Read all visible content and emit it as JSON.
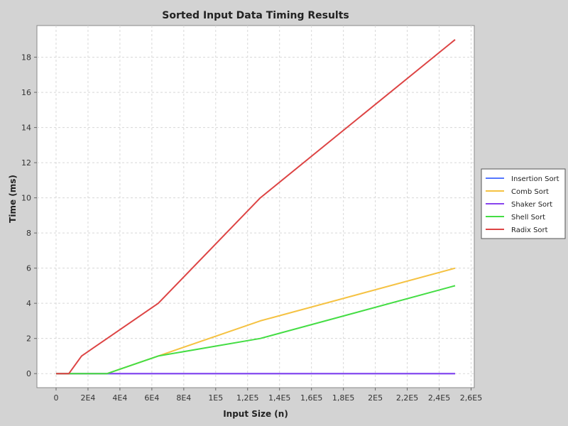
{
  "chart_data": {
    "type": "line",
    "title": "Sorted Input Data Timing Results",
    "xlabel": "Input Size (n)",
    "ylabel": "Time (ms)",
    "xlim": [
      -12000,
      262000
    ],
    "ylim": [
      -0.8,
      19.8
    ],
    "x_ticks": [
      {
        "value": 0,
        "label": "0"
      },
      {
        "value": 20000,
        "label": "2E4"
      },
      {
        "value": 40000,
        "label": "4E4"
      },
      {
        "value": 60000,
        "label": "6E4"
      },
      {
        "value": 80000,
        "label": "8E4"
      },
      {
        "value": 100000,
        "label": "1E5"
      },
      {
        "value": 120000,
        "label": "1,2E5"
      },
      {
        "value": 140000,
        "label": "1,4E5"
      },
      {
        "value": 160000,
        "label": "1,6E5"
      },
      {
        "value": 180000,
        "label": "1,8E5"
      },
      {
        "value": 200000,
        "label": "2E5"
      },
      {
        "value": 220000,
        "label": "2,2E5"
      },
      {
        "value": 240000,
        "label": "2,4E5"
      },
      {
        "value": 260000,
        "label": "2,6E5"
      }
    ],
    "y_ticks": [
      {
        "value": 0,
        "label": "0"
      },
      {
        "value": 2,
        "label": "2"
      },
      {
        "value": 4,
        "label": "4"
      },
      {
        "value": 6,
        "label": "6"
      },
      {
        "value": 8,
        "label": "8"
      },
      {
        "value": 10,
        "label": "10"
      },
      {
        "value": 12,
        "label": "12"
      },
      {
        "value": 14,
        "label": "14"
      },
      {
        "value": 16,
        "label": "16"
      },
      {
        "value": 18,
        "label": "18"
      }
    ],
    "x": [
      0,
      8000,
      16000,
      32000,
      64000,
      128000,
      250000
    ],
    "series": [
      {
        "name": "Insertion Sort",
        "color": "#5577ff",
        "values": [
          0,
          0,
          0,
          0,
          0,
          0,
          0
        ]
      },
      {
        "name": "Comb Sort",
        "color": "#f5c242",
        "values": [
          0,
          0,
          0,
          0,
          1,
          3,
          6
        ]
      },
      {
        "name": "Shaker Sort",
        "color": "#8844ee",
        "values": [
          0,
          0,
          0,
          0,
          0,
          0,
          0
        ]
      },
      {
        "name": "Shell Sort",
        "color": "#44dd44",
        "values": [
          0,
          0,
          0,
          0,
          1,
          2,
          5
        ]
      },
      {
        "name": "Radix Sort",
        "color": "#dd4444",
        "values": [
          0,
          0,
          1,
          2,
          4,
          10,
          19
        ]
      }
    ],
    "grid": true,
    "legend_position": "right"
  }
}
